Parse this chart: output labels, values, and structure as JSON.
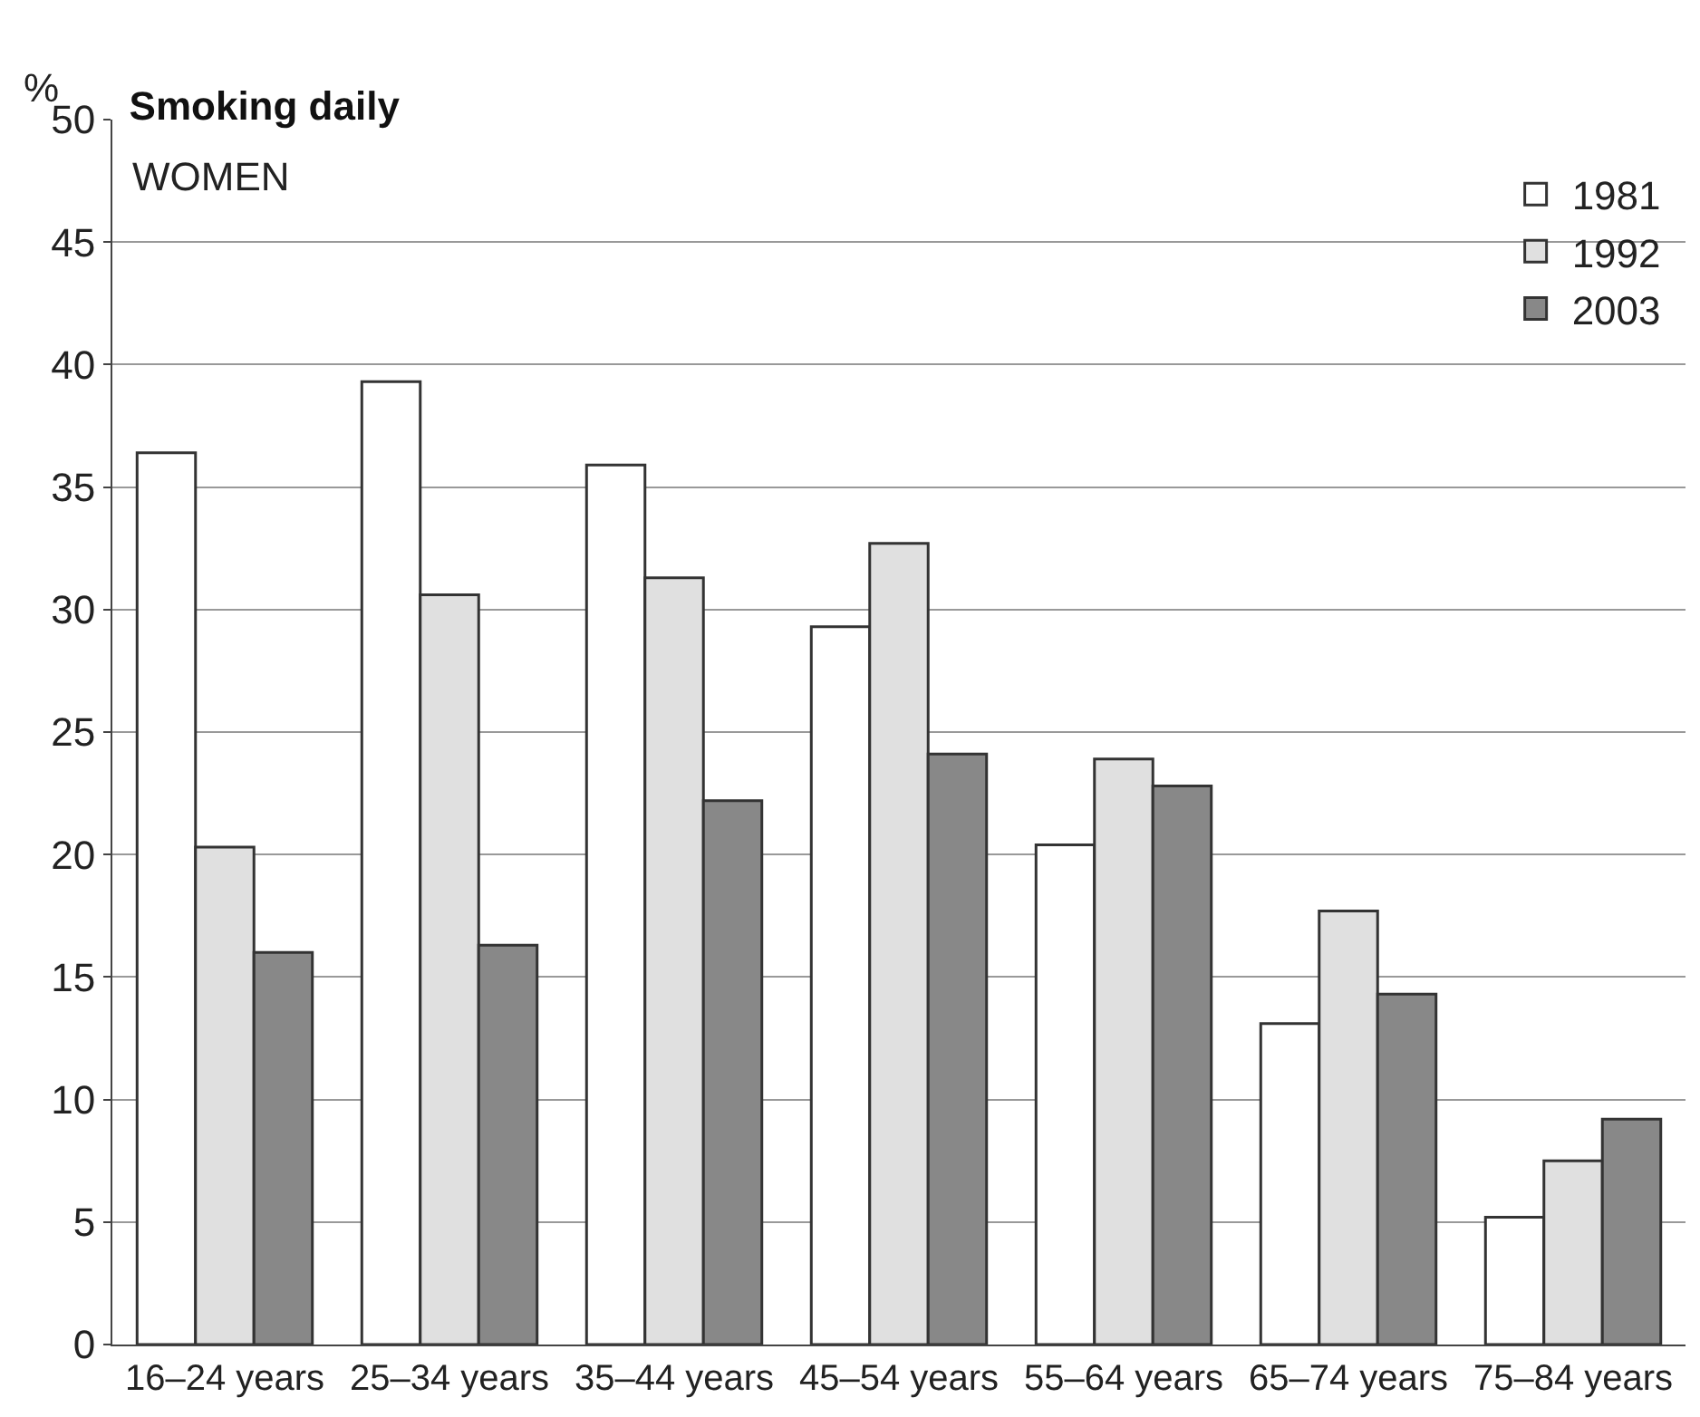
{
  "chart_data": {
    "type": "bar",
    "title": "Smoking daily",
    "subtitle": "WOMEN",
    "ylabel": "%",
    "categories": [
      "16–24 years",
      "25–34 years",
      "35–44 years",
      "45–54 years",
      "55–64 years",
      "65–74 years",
      "75–84 years"
    ],
    "series": [
      {
        "name": "1981",
        "color": "#ffffff",
        "values": [
          36.4,
          39.3,
          35.9,
          29.3,
          20.4,
          13.1,
          5.2
        ]
      },
      {
        "name": "1992",
        "color": "#e0e0e0",
        "values": [
          20.3,
          30.6,
          31.3,
          32.7,
          23.9,
          17.7,
          7.5
        ]
      },
      {
        "name": "2003",
        "color": "#888888",
        "values": [
          16.0,
          16.3,
          22.2,
          24.1,
          22.8,
          14.3,
          9.2
        ]
      }
    ],
    "ylim": [
      0,
      50
    ],
    "yticks": [
      0,
      5,
      10,
      15,
      20,
      25,
      30,
      35,
      40,
      45,
      50
    ],
    "grid": "y",
    "legend": "top right"
  }
}
